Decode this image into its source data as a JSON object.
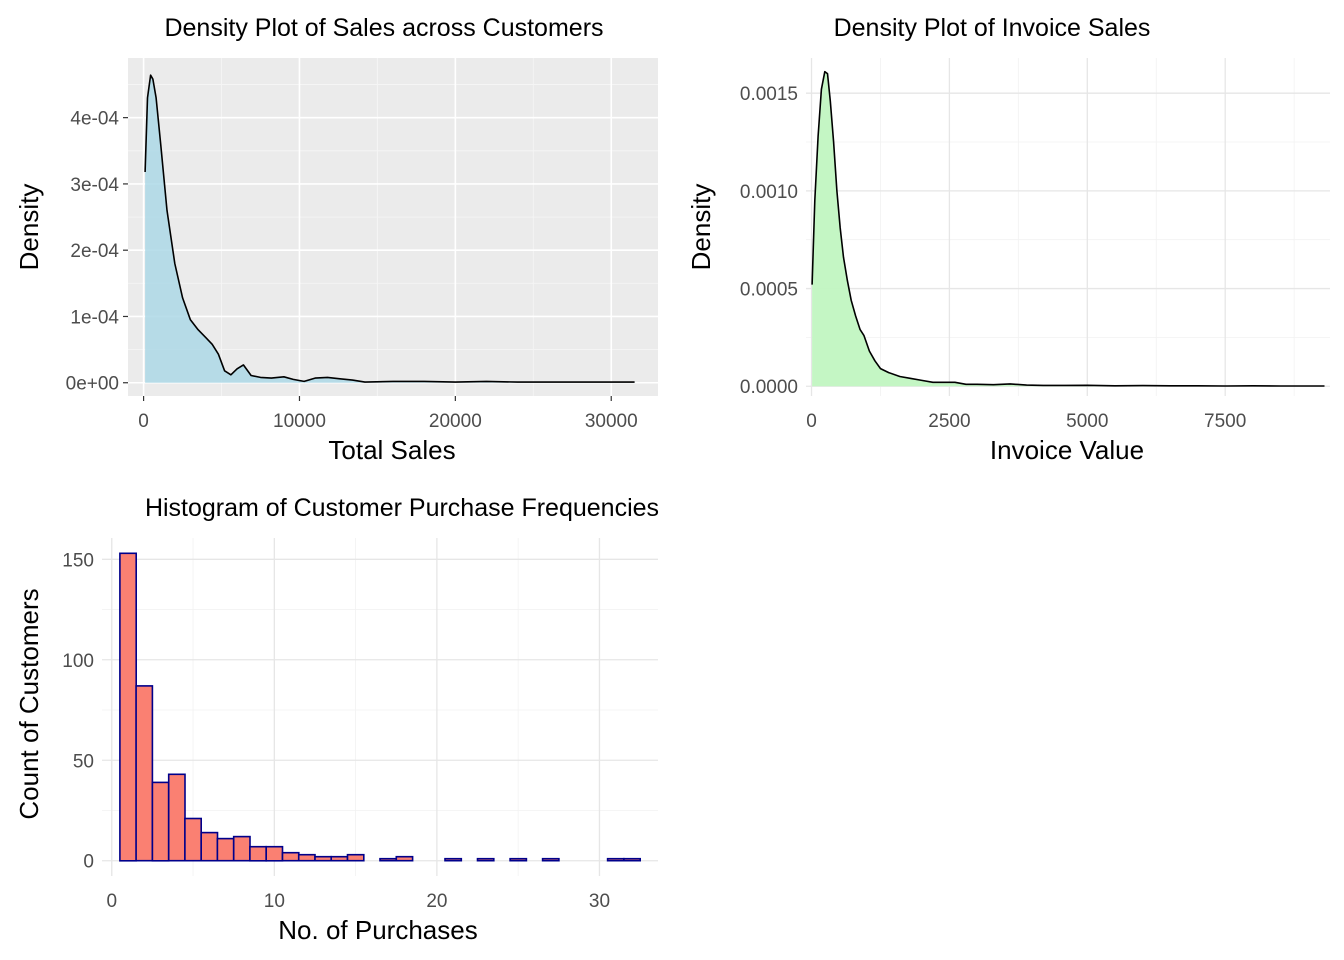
{
  "chart_data": [
    {
      "type": "area",
      "title": "Density Plot of Sales across Customers",
      "xlabel": "Total Sales",
      "ylabel": "Density",
      "xlim": [
        -1000,
        33000
      ],
      "ylim": [
        -2e-05,
        0.00049
      ],
      "x_ticks": [
        0,
        10000,
        20000,
        30000
      ],
      "x_tick_labels": [
        "0",
        "10000",
        "20000",
        "30000"
      ],
      "y_ticks": [
        0,
        0.0001,
        0.0002,
        0.0003,
        0.0004
      ],
      "y_tick_labels": [
        "0e+00",
        "1e-04",
        "2e-04",
        "3e-04",
        "4e-04"
      ],
      "panel_background": "grey",
      "grid": true,
      "fill_color": "#add8e6",
      "line_color": "#000000",
      "x": [
        100,
        250,
        450,
        600,
        800,
        1100,
        1500,
        2000,
        2500,
        3000,
        3500,
        4000,
        4400,
        4800,
        5200,
        5600,
        6000,
        6400,
        6900,
        7500,
        8200,
        9000,
        9600,
        10300,
        11000,
        11800,
        12600,
        13400,
        14200,
        16000,
        18000,
        20000,
        22000,
        24000,
        26000,
        28000,
        30000,
        31500
      ],
      "y": [
        0.000318,
        0.00043,
        0.000464,
        0.000458,
        0.00043,
        0.00036,
        0.00026,
        0.00018,
        0.000128,
        9.5e-05,
        8e-05,
        6.8e-05,
        5.8e-05,
        4.3e-05,
        1.8e-05,
        1.2e-05,
        2.1e-05,
        2.7e-05,
        1.1e-05,
        8e-06,
        7e-06,
        9e-06,
        5e-06,
        2e-06,
        7e-06,
        8e-06,
        6e-06,
        4e-06,
        1e-06,
        2e-06,
        2e-06,
        1e-06,
        2e-06,
        1e-06,
        1e-06,
        1e-06,
        1e-06,
        1e-06
      ]
    },
    {
      "type": "area",
      "title": "Density Plot of  Invoice Sales",
      "xlabel": "Invoice Value",
      "ylabel": "Density",
      "xlim": [
        -100,
        9400
      ],
      "ylim": [
        -5e-05,
        0.00168
      ],
      "x_ticks": [
        0,
        2500,
        5000,
        7500
      ],
      "x_tick_labels": [
        "0",
        "2500",
        "5000",
        "7500"
      ],
      "y_ticks": [
        0,
        0.0005,
        0.001,
        0.0015
      ],
      "y_tick_labels": [
        "0.0000",
        "0.0005",
        "0.0010",
        "0.0015"
      ],
      "panel_background": "white",
      "grid": true,
      "fill_color": "#c1f5c1",
      "line_color": "#000000",
      "x": [
        10,
        60,
        120,
        180,
        240,
        290,
        340,
        400,
        460,
        520,
        580,
        650,
        720,
        800,
        880,
        950,
        1050,
        1150,
        1250,
        1400,
        1600,
        1800,
        2000,
        2200,
        2400,
        2600,
        2800,
        3000,
        3300,
        3600,
        3900,
        4200,
        4600,
        5000,
        5500,
        6000,
        6500,
        7000,
        7500,
        8000,
        8500,
        9300
      ],
      "y": [
        0.00052,
        0.00095,
        0.00128,
        0.00152,
        0.00161,
        0.0016,
        0.00146,
        0.00125,
        0.001,
        0.00081,
        0.00066,
        0.00054,
        0.00044,
        0.00036,
        0.00029,
        0.00026,
        0.00018,
        0.00013,
        9e-05,
        7e-05,
        5e-05,
        4e-05,
        3e-05,
        2e-05,
        2e-05,
        2e-05,
        1e-05,
        1e-05,
        8e-06,
        1.2e-05,
        6e-06,
        4e-06,
        4e-06,
        5e-06,
        2e-06,
        3e-06,
        2e-06,
        2e-06,
        1e-06,
        2e-06,
        1e-06,
        1e-06
      ]
    },
    {
      "type": "bar",
      "title": "Histogram of Customer Purchase Frequencies",
      "xlabel": "No. of Purchases",
      "ylabel": "Count of Customers",
      "xlim": [
        -0.6,
        33.6
      ],
      "ylim": [
        -7.6,
        160.6
      ],
      "x_ticks": [
        0,
        10,
        20,
        30
      ],
      "x_tick_labels": [
        "0",
        "10",
        "20",
        "30"
      ],
      "y_ticks": [
        0,
        50,
        100,
        150
      ],
      "y_tick_labels": [
        "0",
        "50",
        "100",
        "150"
      ],
      "panel_background": "white",
      "grid": true,
      "fill_color": "#fa8072",
      "line_color": "#00008b",
      "bins": [
        {
          "x_min": 0.5,
          "x_max": 1.5,
          "count": 153
        },
        {
          "x_min": 1.5,
          "x_max": 2.5,
          "count": 87
        },
        {
          "x_min": 2.5,
          "x_max": 3.5,
          "count": 39
        },
        {
          "x_min": 3.5,
          "x_max": 4.5,
          "count": 43
        },
        {
          "x_min": 4.5,
          "x_max": 5.5,
          "count": 21
        },
        {
          "x_min": 5.5,
          "x_max": 6.5,
          "count": 14
        },
        {
          "x_min": 6.5,
          "x_max": 7.5,
          "count": 11
        },
        {
          "x_min": 7.5,
          "x_max": 8.5,
          "count": 12
        },
        {
          "x_min": 8.5,
          "x_max": 9.5,
          "count": 7
        },
        {
          "x_min": 9.5,
          "x_max": 10.5,
          "count": 7
        },
        {
          "x_min": 10.5,
          "x_max": 11.5,
          "count": 4
        },
        {
          "x_min": 11.5,
          "x_max": 12.5,
          "count": 3
        },
        {
          "x_min": 12.5,
          "x_max": 13.5,
          "count": 2
        },
        {
          "x_min": 13.5,
          "x_max": 14.5,
          "count": 2
        },
        {
          "x_min": 14.5,
          "x_max": 15.5,
          "count": 3
        },
        {
          "x_min": 15.5,
          "x_max": 16.5,
          "count": 0
        },
        {
          "x_min": 16.5,
          "x_max": 17.5,
          "count": 1
        },
        {
          "x_min": 17.5,
          "x_max": 18.5,
          "count": 2
        },
        {
          "x_min": 18.5,
          "x_max": 19.5,
          "count": 0
        },
        {
          "x_min": 19.5,
          "x_max": 20.5,
          "count": 0
        },
        {
          "x_min": 20.5,
          "x_max": 21.5,
          "count": 1
        },
        {
          "x_min": 21.5,
          "x_max": 22.5,
          "count": 0
        },
        {
          "x_min": 22.5,
          "x_max": 23.5,
          "count": 1
        },
        {
          "x_min": 23.5,
          "x_max": 24.5,
          "count": 0
        },
        {
          "x_min": 24.5,
          "x_max": 25.5,
          "count": 1
        },
        {
          "x_min": 25.5,
          "x_max": 26.5,
          "count": 0
        },
        {
          "x_min": 26.5,
          "x_max": 27.5,
          "count": 1
        },
        {
          "x_min": 27.5,
          "x_max": 28.5,
          "count": 0
        },
        {
          "x_min": 28.5,
          "x_max": 29.5,
          "count": 0
        },
        {
          "x_min": 29.5,
          "x_max": 30.5,
          "count": 0
        },
        {
          "x_min": 30.5,
          "x_max": 31.5,
          "count": 1
        },
        {
          "x_min": 31.5,
          "x_max": 32.5,
          "count": 1
        }
      ]
    }
  ]
}
